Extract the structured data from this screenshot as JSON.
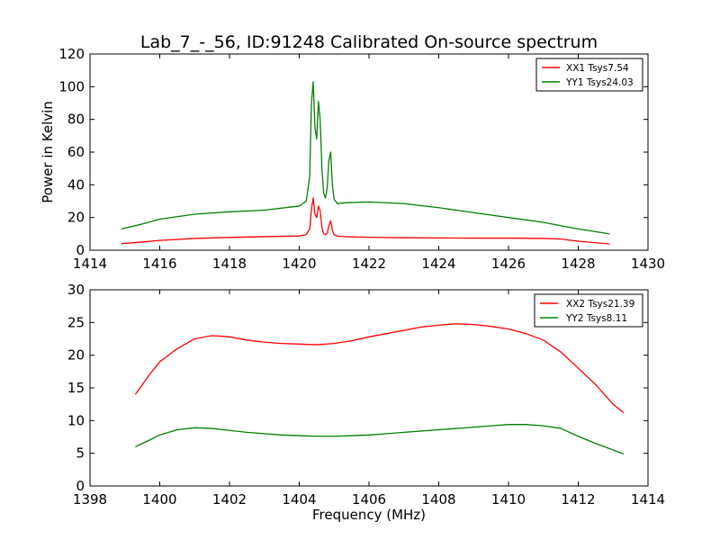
{
  "chart_data": [
    {
      "type": "line",
      "title": "Lab_7_-_56, ID:91248 Calibrated On-source spectrum",
      "xlabel": "",
      "ylabel": "Power in Kelvin",
      "xlim": [
        1414,
        1430
      ],
      "ylim": [
        0,
        120
      ],
      "xticks": [
        1414,
        1416,
        1418,
        1420,
        1422,
        1424,
        1426,
        1428,
        1430
      ],
      "yticks": [
        0,
        20,
        40,
        60,
        80,
        100,
        120
      ],
      "grid": false,
      "legend_position": "top-right",
      "series": [
        {
          "name": "XX1 Tsys7.54",
          "color": "#ff0000",
          "x": [
            1414.9,
            1415.5,
            1416,
            1417,
            1418,
            1419,
            1420,
            1420.2,
            1420.3,
            1420.35,
            1420.4,
            1420.45,
            1420.5,
            1420.55,
            1420.6,
            1420.65,
            1420.7,
            1420.75,
            1420.8,
            1420.85,
            1420.9,
            1420.95,
            1421.0,
            1421.1,
            1421.3,
            1422,
            1423,
            1424,
            1425,
            1426,
            1427,
            1427.5,
            1428,
            1428.9
          ],
          "y": [
            4,
            5,
            6,
            7.2,
            7.8,
            8.3,
            8.7,
            9.5,
            13,
            25,
            32,
            22,
            20,
            27,
            24,
            14,
            10,
            9.5,
            10.5,
            15,
            18,
            12,
            9.5,
            8.6,
            8.3,
            7.9,
            7.6,
            7.5,
            7.4,
            7.4,
            7.2,
            6.8,
            5.5,
            3.8
          ]
        },
        {
          "name": "YY1 Tsys24.03",
          "color": "#008000",
          "x": [
            1414.9,
            1415.5,
            1416,
            1417,
            1418,
            1419,
            1420,
            1420.2,
            1420.3,
            1420.35,
            1420.4,
            1420.45,
            1420.5,
            1420.55,
            1420.6,
            1420.65,
            1420.7,
            1420.75,
            1420.8,
            1420.85,
            1420.9,
            1420.95,
            1421.0,
            1421.1,
            1421.3,
            1422,
            1423,
            1424,
            1425,
            1426,
            1427,
            1427.5,
            1428,
            1428.9
          ],
          "y": [
            13,
            16,
            19,
            22,
            23.5,
            24.5,
            27,
            30,
            45,
            90,
            103,
            75,
            68,
            91,
            80,
            50,
            35,
            32,
            38,
            55,
            60,
            40,
            31,
            28.5,
            29,
            29.5,
            28.5,
            26,
            23,
            20,
            17,
            15,
            13,
            10
          ]
        }
      ]
    },
    {
      "type": "line",
      "title": "",
      "xlabel": "Frequency (MHz)",
      "ylabel": "",
      "xlim": [
        1398,
        1414
      ],
      "ylim": [
        0,
        30
      ],
      "xticks": [
        1398,
        1400,
        1402,
        1404,
        1406,
        1408,
        1410,
        1412,
        1414
      ],
      "yticks": [
        0,
        5,
        10,
        15,
        20,
        25,
        30
      ],
      "grid": false,
      "legend_position": "top-right",
      "series": [
        {
          "name": "XX2 Tsys21.39",
          "color": "#ff0000",
          "x": [
            1399.3,
            1399.7,
            1400,
            1400.5,
            1401,
            1401.5,
            1402,
            1402.5,
            1403,
            1403.5,
            1404,
            1404.5,
            1405,
            1405.5,
            1406,
            1406.5,
            1407,
            1407.5,
            1408,
            1408.5,
            1409,
            1409.5,
            1410,
            1410.5,
            1411,
            1411.5,
            1412,
            1412.5,
            1413,
            1413.3
          ],
          "y": [
            14,
            17,
            19,
            21,
            22.5,
            23,
            22.8,
            22.3,
            22,
            21.8,
            21.7,
            21.6,
            21.8,
            22.2,
            22.8,
            23.3,
            23.8,
            24.3,
            24.6,
            24.8,
            24.7,
            24.4,
            24,
            23.3,
            22.3,
            20.5,
            18,
            15.5,
            12.5,
            11.2
          ]
        },
        {
          "name": "YY2 Tsys8.11",
          "color": "#008000",
          "x": [
            1399.3,
            1399.7,
            1400,
            1400.5,
            1401,
            1401.5,
            1402,
            1402.5,
            1403,
            1403.5,
            1404,
            1404.5,
            1405,
            1405.5,
            1406,
            1406.5,
            1407,
            1407.5,
            1408,
            1408.5,
            1409,
            1409.5,
            1410,
            1410.5,
            1411,
            1411.5,
            1412,
            1412.5,
            1413,
            1413.3
          ],
          "y": [
            6,
            7,
            7.8,
            8.6,
            8.9,
            8.8,
            8.5,
            8.2,
            8,
            7.8,
            7.7,
            7.6,
            7.6,
            7.7,
            7.8,
            8,
            8.2,
            8.4,
            8.6,
            8.8,
            9,
            9.2,
            9.4,
            9.4,
            9.2,
            8.8,
            7.6,
            6.5,
            5.5,
            4.9
          ]
        }
      ]
    }
  ]
}
